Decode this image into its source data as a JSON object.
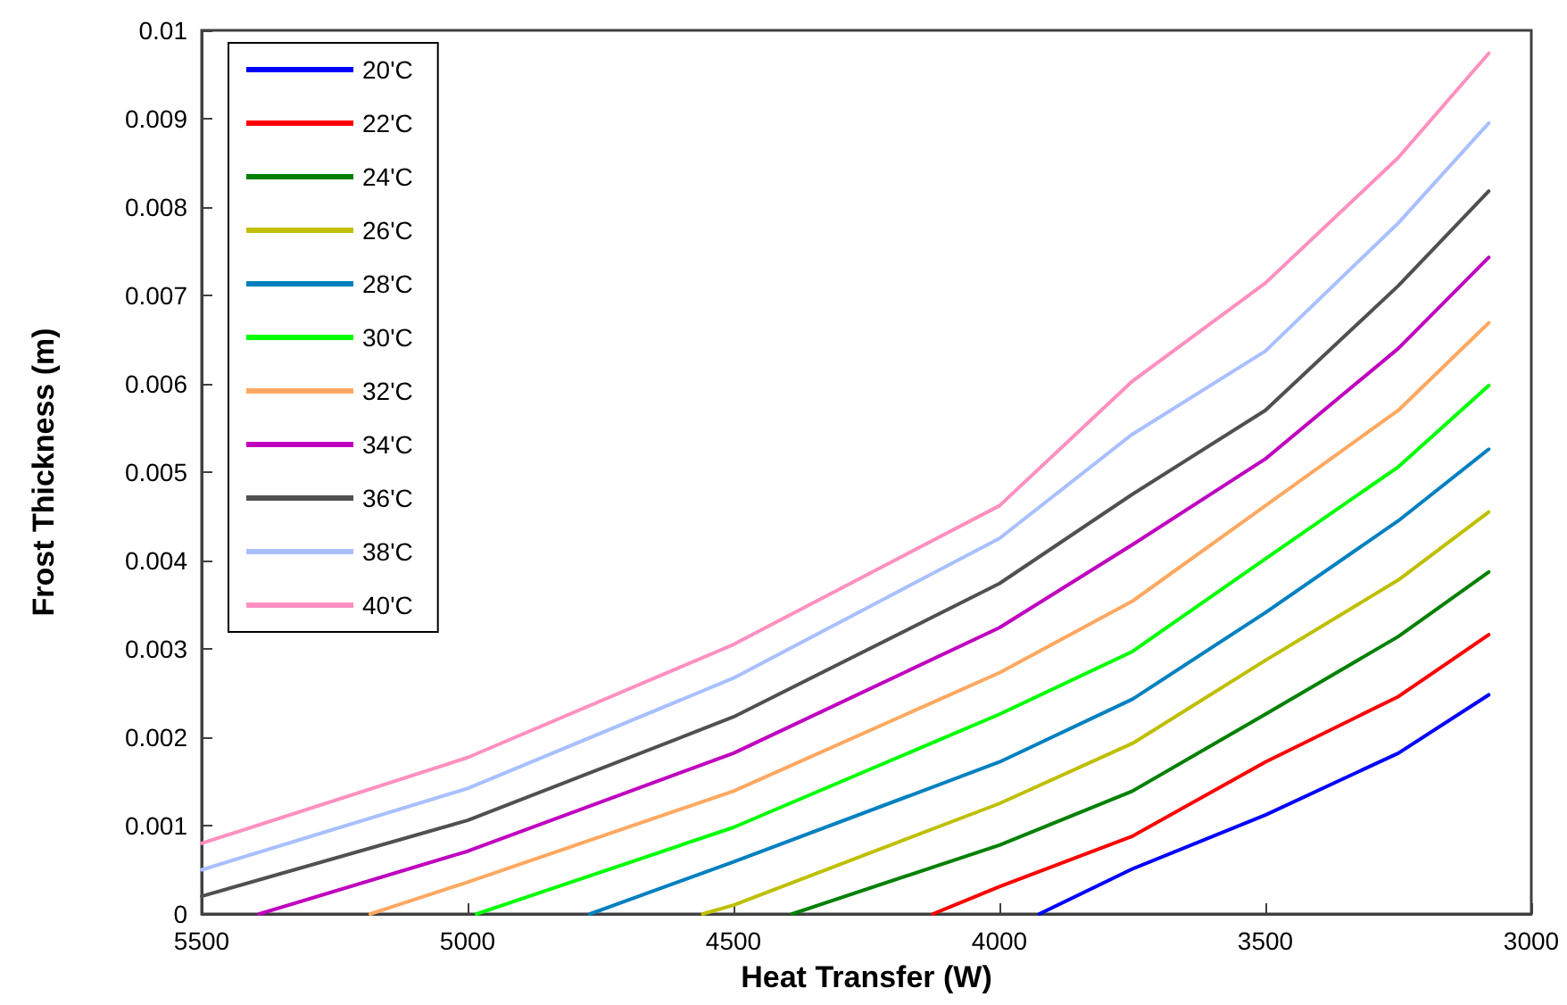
{
  "chart_data": {
    "type": "line",
    "xlabel": "Heat Transfer (W)",
    "ylabel": "Frost Thickness (m)",
    "xlim": [
      5500,
      3000
    ],
    "xticks": [
      5500,
      5000,
      4500,
      4000,
      3500,
      3000
    ],
    "ylim": [
      0,
      0.01
    ],
    "yticks": [
      0,
      0.001,
      0.002,
      0.003,
      0.004,
      0.005,
      0.006,
      0.007,
      0.008,
      0.009,
      0.01
    ],
    "grid": false,
    "legend": "top left",
    "marker": "none",
    "line_style": "solid",
    "series": [
      {
        "name": "20'C",
        "color": "#0000ff",
        "x": [
          3925,
          3750,
          3500,
          3250,
          3080
        ],
        "values": [
          0,
          0.00051,
          0.00112,
          0.00182,
          0.00248
        ]
      },
      {
        "name": "22'C",
        "color": "#ff0000",
        "x": [
          4125,
          4000,
          3750,
          3500,
          3250,
          3080
        ],
        "values": [
          0,
          0.00031,
          0.00088,
          0.00172,
          0.00246,
          0.00316
        ]
      },
      {
        "name": "24'C",
        "color": "#008000",
        "x": [
          4390,
          4000,
          3750,
          3500,
          3250,
          3080
        ],
        "values": [
          0,
          0.00078,
          0.00139,
          0.00226,
          0.00314,
          0.00387
        ]
      },
      {
        "name": "26'C",
        "color": "#bfbf00",
        "x": [
          4558,
          4500,
          4000,
          3750,
          3500,
          3250,
          3080
        ],
        "values": [
          0,
          0.0001,
          0.00125,
          0.00193,
          0.00287,
          0.00378,
          0.00455
        ]
      },
      {
        "name": "28'C",
        "color": "#0080c0",
        "x": [
          4770,
          4500,
          4000,
          3750,
          3500,
          3250,
          3080
        ],
        "values": [
          0,
          0.00059,
          0.00172,
          0.00243,
          0.00341,
          0.00445,
          0.00526
        ]
      },
      {
        "name": "30'C",
        "color": "#00ff00",
        "x": [
          4983,
          4500,
          4000,
          3750,
          3500,
          3250,
          3080
        ],
        "values": [
          0,
          0.00098,
          0.00226,
          0.00297,
          0.00402,
          0.00506,
          0.00598
        ]
      },
      {
        "name": "32'C",
        "color": "#ffa860",
        "x": [
          5183,
          5000,
          4500,
          4000,
          3750,
          3500,
          3250,
          3080
        ],
        "values": [
          0,
          0.00036,
          0.00139,
          0.00273,
          0.00354,
          0.00462,
          0.0057,
          0.00669
        ]
      },
      {
        "name": "34'C",
        "color": "#bf00bf",
        "x": [
          5392,
          5000,
          4500,
          4000,
          3750,
          3500,
          3250,
          3080
        ],
        "values": [
          0,
          0.00071,
          0.00182,
          0.00324,
          0.00418,
          0.00515,
          0.0064,
          0.00743
        ]
      },
      {
        "name": "36'C",
        "color": "#505050",
        "x": [
          5500,
          5000,
          4500,
          4000,
          3750,
          3500,
          3250,
          3080
        ],
        "values": [
          0.0002,
          0.00106,
          0.00223,
          0.00374,
          0.00475,
          0.0057,
          0.00711,
          0.00818
        ]
      },
      {
        "name": "38'C",
        "color": "#a8c0ff",
        "x": [
          5500,
          5000,
          4500,
          4000,
          3750,
          3500,
          3250,
          3080
        ],
        "values": [
          0.0005,
          0.00142,
          0.00267,
          0.00425,
          0.00543,
          0.00637,
          0.00782,
          0.00895
        ]
      },
      {
        "name": "40'C",
        "color": "#ff90c0",
        "x": [
          5500,
          5000,
          4500,
          4000,
          3750,
          3500,
          3250,
          3080
        ],
        "values": [
          0.0008,
          0.00177,
          0.00305,
          0.00462,
          0.00603,
          0.00714,
          0.00856,
          0.00974
        ]
      }
    ]
  }
}
